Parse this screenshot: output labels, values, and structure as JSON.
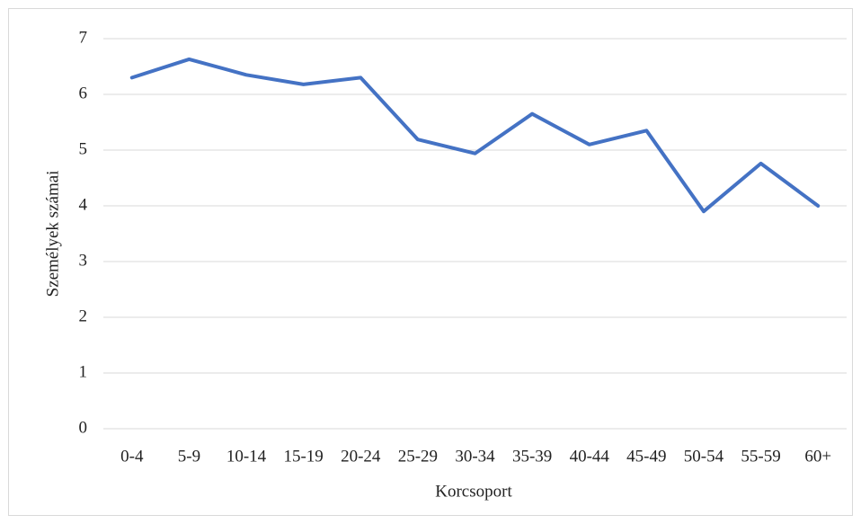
{
  "chart_data": {
    "type": "line",
    "x_label": "Korcsoport",
    "y_label": "Személyek számai",
    "categories": [
      "0-4",
      "5-9",
      "10-14",
      "15-19",
      "20-24",
      "25-29",
      "30-34",
      "35-39",
      "40-44",
      "45-49",
      "50-54",
      "55-59",
      "60+"
    ],
    "series": [
      {
        "color": "#4472c4",
        "values": [
          6.3,
          6.63,
          6.35,
          6.18,
          6.3,
          5.19,
          4.94,
          5.65,
          5.1,
          5.35,
          3.9,
          4.76,
          4.0
        ]
      }
    ],
    "ylim": [
      0,
      7
    ],
    "yticks": [
      0,
      1,
      2,
      3,
      4,
      5,
      6,
      7
    ],
    "grid": true
  }
}
